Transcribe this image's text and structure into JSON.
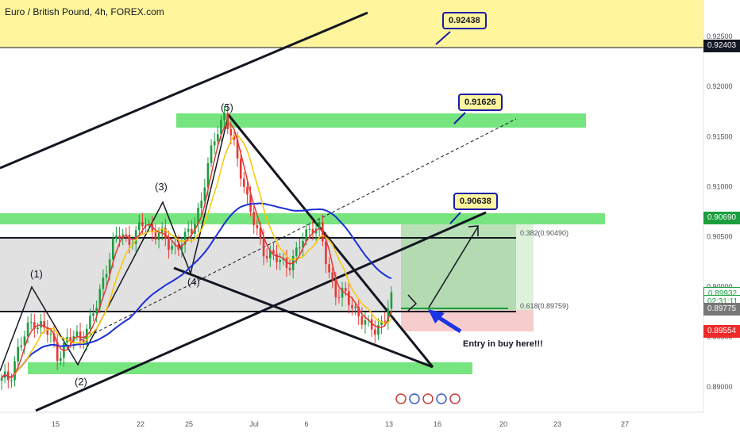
{
  "title": "Euro / British Pound, 4h, FOREX.com",
  "chart_data": {
    "type": "candlestick",
    "symbol": "EURGBP",
    "interval": "4h",
    "y_ticks": [
      "0.92500",
      "0.92000",
      "0.91500",
      "0.91000",
      "0.90500",
      "0.90000",
      "0.89500",
      "0.89000"
    ],
    "x_ticks": [
      "15",
      "22",
      "25",
      "Jul",
      "6",
      "13",
      "16",
      "20",
      "23",
      "27"
    ],
    "price_labels": [
      {
        "value": "0.92403",
        "bg": "#131722",
        "fg": "#ffffff",
        "y": 0.92403
      },
      {
        "value": "0.90690",
        "bg": "#1b9e3e",
        "fg": "#ffffff",
        "y": 0.9069
      },
      {
        "value": "0.89932",
        "bg": "#ffffff",
        "fg": "#1b9e3e",
        "y": 0.89932
      },
      {
        "value": "02:31:11",
        "bg": "#ffffff",
        "fg": "#1b9e3e",
        "y": 0.89855
      },
      {
        "value": "0.89775",
        "bg": "#777777",
        "fg": "#ffffff",
        "y": 0.89775
      },
      {
        "value": "0.89554",
        "bg": "#ef2929",
        "fg": "#ffffff",
        "y": 0.89554
      }
    ],
    "callouts": [
      "0.92438",
      "0.91626",
      "0.90638"
    ],
    "fib_levels": [
      {
        "label": "0.382(0.90490)",
        "value": 0.9049
      },
      {
        "label": "0.618(0.89759)",
        "value": 0.89759
      }
    ],
    "wave_labels": [
      "(1)",
      "(2)",
      "(3)",
      "(4)",
      "(5)"
    ],
    "annotation": "Entry in buy here!!!",
    "series_points": [
      0.8905,
      0.891,
      0.8935,
      0.8952,
      0.8968,
      0.896,
      0.8952,
      0.8933,
      0.8942,
      0.895,
      0.8951,
      0.896,
      0.8983,
      0.9017,
      0.904,
      0.9055,
      0.9047,
      0.9051,
      0.9068,
      0.9055,
      0.905,
      0.9044,
      0.904,
      0.9045,
      0.9062,
      0.9082,
      0.912,
      0.9159,
      0.917,
      0.9145,
      0.912,
      0.9082,
      0.9055,
      0.9038,
      0.9029,
      0.9025,
      0.9024,
      0.903,
      0.905,
      0.9063,
      0.9055,
      0.9018,
      0.8996,
      0.899,
      0.8983,
      0.8972,
      0.8958,
      0.8959,
      0.8967,
      0.8985
    ],
    "series_x_range": [
      0,
      495
    ]
  },
  "colors": {
    "green_zone": "#77e57f",
    "yellow_zone": "#fff59d",
    "gray_zone": "#dcdcdc",
    "candle_up": "#1b9e3e",
    "candle_down": "#e53935",
    "ma_red": "#e53935",
    "ma_yellow": "#f9c700",
    "ma_blue": "#1a2fd6",
    "arrow_blue": "#1a35e6"
  }
}
